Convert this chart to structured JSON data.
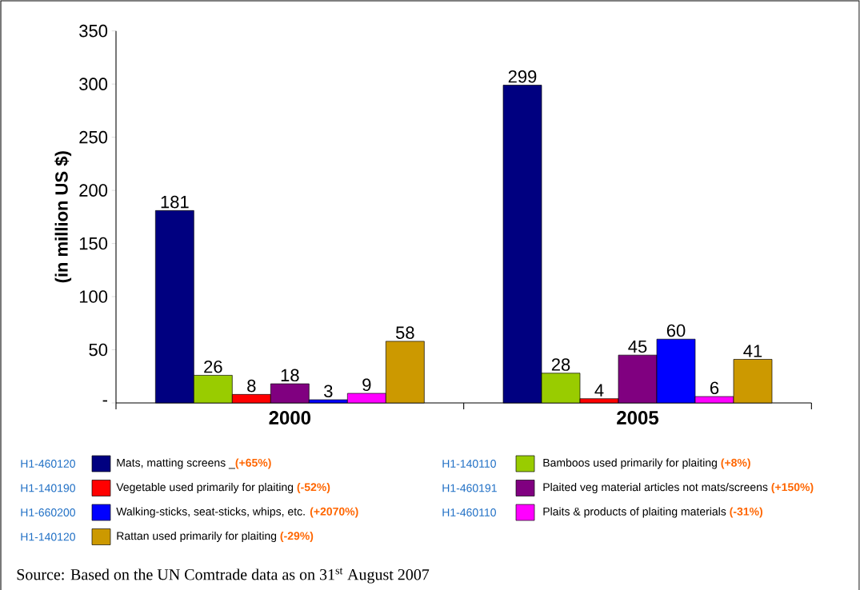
{
  "chart_data": {
    "type": "bar",
    "ylabel": "(in million US $)",
    "categories": [
      "2000",
      "2005"
    ],
    "series": [
      {
        "name": "Mats, matting screens _**(+65%)**",
        "color": "#000080",
        "values": [
          181,
          299
        ]
      },
      {
        "name": "Bamboos used primarily for plaiting **(+8%)**",
        "color": "#99cc00",
        "values": [
          26,
          28
        ]
      },
      {
        "name": "Vegetable used primarily for plaiting **(-52%)**",
        "color": "#ff0000",
        "values": [
          8,
          4
        ]
      },
      {
        "name": "Plaited veg material articles not mats/screens **(+150%)**",
        "color": "#800080",
        "values": [
          18,
          45
        ]
      },
      {
        "name": "Walking-sticks, seat-sticks, whips, etc. **(+2070%)**",
        "color": "#0000ff",
        "values": [
          3,
          60
        ]
      },
      {
        "name": "Plaits & products of plaiting materials **(-31%)**",
        "color": "#ff00ff",
        "values": [
          9,
          6
        ]
      },
      {
        "name": "Rattan used primarily for plaiting **(-29%)**",
        "color": "#cc9900",
        "values": [
          58,
          41
        ]
      }
    ],
    "ylim": [
      0,
      350
    ],
    "yticks": [
      {
        "value": 0,
        "label": "-"
      },
      50,
      100,
      150,
      200,
      250,
      300,
      350
    ],
    "data_labels": true,
    "legend": "bottom",
    "annotations": [
      "H1-460120",
      "H1-140110",
      "H1-140190",
      "H1-460191",
      "H1-660200",
      "H1-460110",
      "H1-140120",
      "Source: Based on the UN Comtrade data as on 31$^{st}$ August 2007"
    ]
  }
}
